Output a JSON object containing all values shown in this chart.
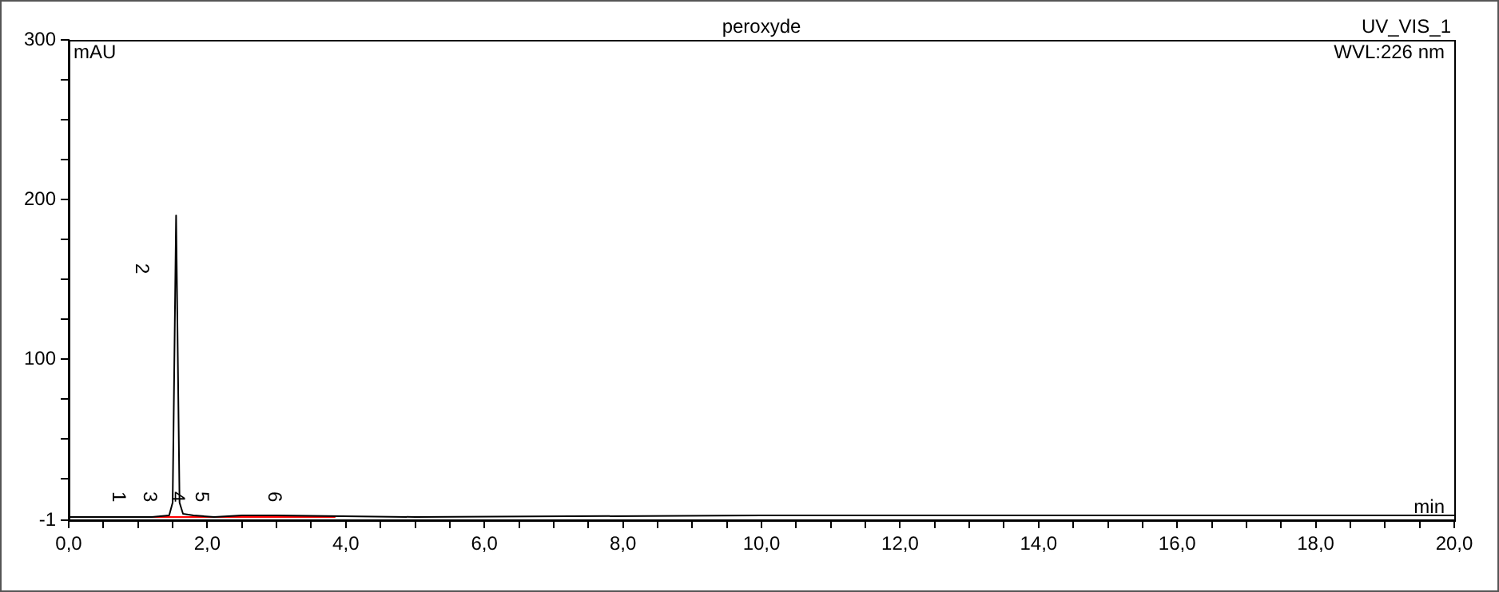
{
  "chart_data": {
    "type": "line",
    "title": "peroxyde",
    "subtitle": "UV_VIS_1",
    "xlabel": "min",
    "ylabel": "mAU",
    "annotations": [
      "WVL:226 nm",
      {
        "text": "1",
        "x": 0.85,
        "y": 1
      },
      {
        "text": "2",
        "x": 1.55,
        "y": 190
      },
      {
        "text": "3",
        "x": 1.3,
        "y": 1
      },
      {
        "text": "4",
        "x": 1.7,
        "y": 1
      },
      {
        "text": "5",
        "x": 2.05,
        "y": 1
      },
      {
        "text": "6",
        "x": 3.1,
        "y": 1
      }
    ],
    "series": [
      {
        "color": "#000000",
        "x": [
          0,
          0.8,
          1.2,
          1.45,
          1.5,
          1.55,
          1.6,
          1.65,
          1.8,
          2.1,
          2.5,
          3.0,
          5,
          10,
          20
        ],
        "values": [
          1,
          1,
          1,
          2,
          10,
          190,
          10,
          3,
          2,
          1,
          2,
          2,
          1,
          2,
          2
        ]
      },
      {
        "color": "#ff0000",
        "x": [
          0,
          3.85
        ],
        "values": [
          1,
          1
        ]
      }
    ],
    "xlim": [
      0,
      20
    ],
    "ylim": [
      -1,
      300
    ],
    "xticks": [
      {
        "value": 0,
        "label": "0,0"
      },
      {
        "value": 0.5,
        "label": null
      },
      {
        "value": 1,
        "label": null
      },
      {
        "value": 1.5,
        "label": null
      },
      {
        "value": 2,
        "label": "2,0"
      },
      {
        "value": 2.5,
        "label": null
      },
      {
        "value": 3,
        "label": null
      },
      {
        "value": 3.5,
        "label": null
      },
      {
        "value": 4,
        "label": "4,0"
      },
      {
        "value": 4.5,
        "label": null
      },
      {
        "value": 5,
        "label": null
      },
      {
        "value": 5.5,
        "label": null
      },
      {
        "value": 6,
        "label": "6,0"
      },
      {
        "value": 6.5,
        "label": null
      },
      {
        "value": 7,
        "label": null
      },
      {
        "value": 7.5,
        "label": null
      },
      {
        "value": 8,
        "label": "8,0"
      },
      {
        "value": 8.5,
        "label": null
      },
      {
        "value": 9,
        "label": null
      },
      {
        "value": 9.5,
        "label": null
      },
      {
        "value": 10,
        "label": "10,0"
      },
      {
        "value": 10.5,
        "label": null
      },
      {
        "value": 11,
        "label": null
      },
      {
        "value": 11.5,
        "label": null
      },
      {
        "value": 12,
        "label": "12,0"
      },
      {
        "value": 12.5,
        "label": null
      },
      {
        "value": 13,
        "label": null
      },
      {
        "value": 13.5,
        "label": null
      },
      {
        "value": 14,
        "label": "14,0"
      },
      {
        "value": 14.5,
        "label": null
      },
      {
        "value": 15,
        "label": null
      },
      {
        "value": 15.5,
        "label": null
      },
      {
        "value": 16,
        "label": "16,0"
      },
      {
        "value": 16.5,
        "label": null
      },
      {
        "value": 17,
        "label": null
      },
      {
        "value": 17.5,
        "label": null
      },
      {
        "value": 18,
        "label": "18,0"
      },
      {
        "value": 18.5,
        "label": null
      },
      {
        "value": 19,
        "label": null
      },
      {
        "value": 19.5,
        "label": null
      },
      {
        "value": 20,
        "label": "20,0"
      }
    ],
    "yticks": [
      -1,
      {
        "value": 25,
        "label": null
      },
      {
        "value": 50,
        "label": null
      },
      {
        "value": 75,
        "label": null
      },
      100,
      {
        "value": 125,
        "label": null
      },
      {
        "value": 150,
        "label": null
      },
      {
        "value": 175,
        "label": null
      },
      200,
      {
        "value": 225,
        "label": null
      },
      {
        "value": 250,
        "label": null
      },
      {
        "value": 275,
        "label": null
      },
      300
    ],
    "grid": false,
    "legend": false,
    "marker": "none",
    "line_style": "solid"
  }
}
